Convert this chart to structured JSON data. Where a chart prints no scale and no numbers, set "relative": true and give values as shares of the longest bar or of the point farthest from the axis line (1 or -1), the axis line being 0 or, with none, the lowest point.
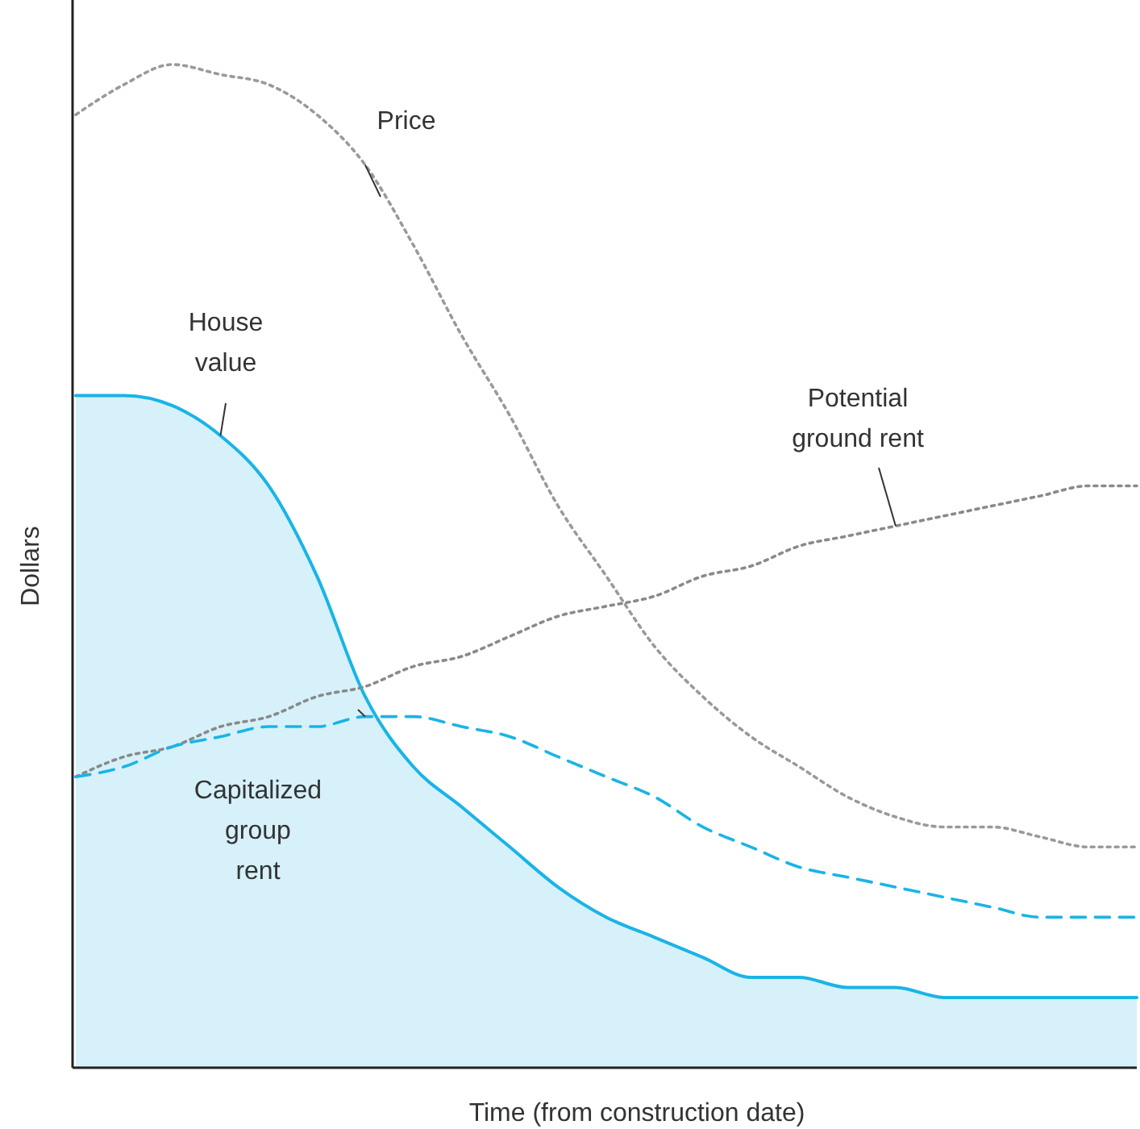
{
  "chart_data": {
    "type": "line",
    "relative": true,
    "xlabel": "Time (from construction date)",
    "ylabel": "Dollars",
    "categories": [
      null,
      null,
      null,
      null,
      null,
      null,
      null,
      null,
      null,
      null,
      null,
      null,
      null,
      null,
      null,
      null,
      null,
      null,
      null,
      null,
      null,
      null,
      null
    ],
    "series": [
      {
        "name": "Price",
        "line_style": "dotted",
        "color": "#9a9a9a",
        "values": [
          0.95,
          0.98,
          1,
          0.99,
          0.98,
          0.95,
          0.9,
          0.82,
          0.73,
          0.65,
          0.56,
          0.49,
          0.42,
          0.37,
          0.33,
          0.3,
          0.27,
          0.25,
          0.24,
          0.24,
          0.23,
          0.22,
          0.22
        ]
      },
      {
        "name": "House value",
        "type": "area",
        "line_style": "solid",
        "color": "#1ab4e6",
        "values": [
          0.67,
          0.67,
          0.66,
          0.63,
          0.58,
          0.49,
          0.37,
          0.3,
          0.26,
          0.22,
          0.18,
          0.15,
          0.13,
          0.11,
          0.09,
          0.09,
          0.08,
          0.08,
          0.07,
          0.07,
          0.07,
          0.07,
          0.07
        ]
      },
      {
        "name": "Potential ground rent",
        "line_style": "dotted",
        "color": "#8a8a8a",
        "values": [
          0.29,
          0.31,
          0.32,
          0.34,
          0.35,
          0.37,
          0.38,
          0.4,
          0.41,
          0.43,
          0.45,
          0.46,
          0.47,
          0.49,
          0.5,
          0.52,
          0.53,
          0.54,
          0.55,
          0.56,
          0.57,
          0.58,
          0.58
        ]
      },
      {
        "name": "Capitalized group rent",
        "line_style": "dashed",
        "color": "#1ab4e6",
        "values": [
          0.29,
          0.3,
          0.32,
          0.33,
          0.34,
          0.34,
          0.35,
          0.35,
          0.34,
          0.33,
          0.31,
          0.29,
          0.27,
          0.24,
          0.22,
          0.2,
          0.19,
          0.18,
          0.17,
          0.16,
          0.15,
          0.15,
          0.15
        ]
      }
    ]
  }
}
